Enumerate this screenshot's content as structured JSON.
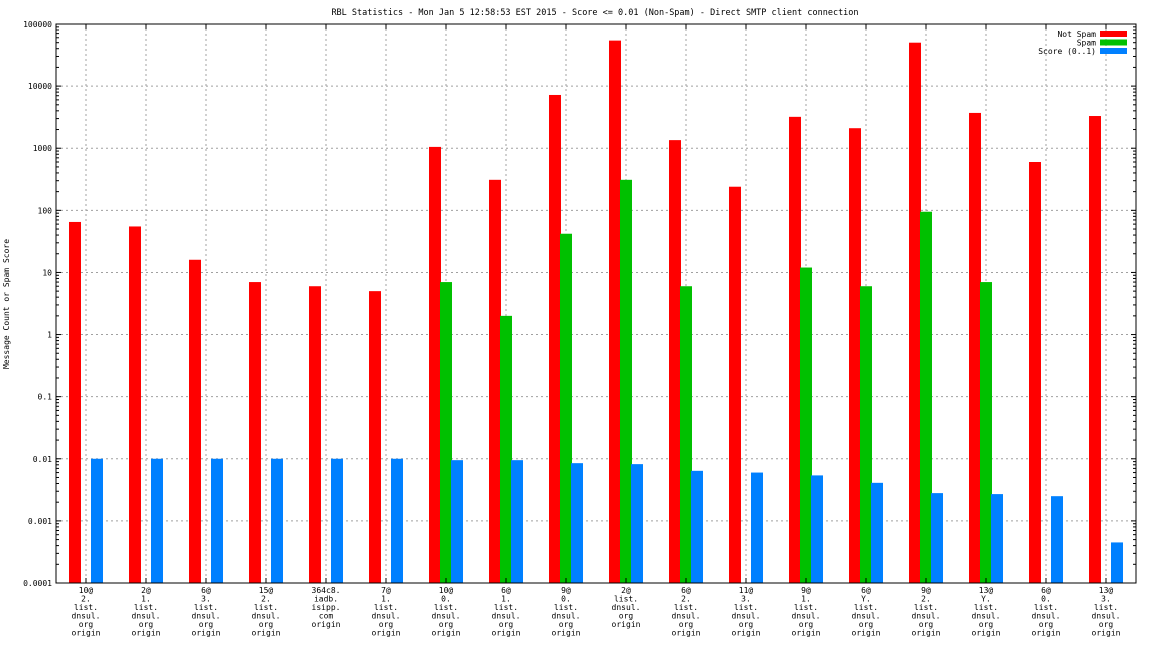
{
  "chart_data": {
    "type": "bar",
    "title": "RBL Statistics - Mon Jan  5 12:58:53 EST 2015 - Score <= 0.01 (Non-Spam) - Direct SMTP client connection",
    "ylabel": "Message Count or Spam Score",
    "xlabel": "",
    "yscale": "log",
    "ylim": [
      0.0001,
      100000
    ],
    "grid": true,
    "legend_position": "top-right",
    "y_ticks": [
      "100000",
      "10000",
      "1000",
      "100",
      "10",
      "1",
      "0.1",
      "0.01",
      "0.001",
      "0.0001"
    ],
    "categories": [
      [
        "10@",
        "2.",
        "list.",
        "dnsul.",
        "org",
        "origin"
      ],
      [
        "2@",
        "1.",
        "list.",
        "dnsul.",
        "org",
        "origin"
      ],
      [
        "6@",
        "3.",
        "list.",
        "dnsul.",
        "org",
        "origin"
      ],
      [
        "15@",
        "2.",
        "list.",
        "dnsul.",
        "org",
        "origin"
      ],
      [
        "364c8.",
        "iadb.",
        "isipp.",
        "com",
        "origin"
      ],
      [
        "7@",
        "1.",
        "list.",
        "dnsul.",
        "org",
        "origin"
      ],
      [
        "10@",
        "0.",
        "list.",
        "dnsul.",
        "org",
        "origin"
      ],
      [
        "6@",
        "1.",
        "list.",
        "dnsul.",
        "org",
        "origin"
      ],
      [
        "9@",
        "0.",
        "list.",
        "dnsul.",
        "org",
        "origin"
      ],
      [
        "2@",
        "list.",
        "dnsul.",
        "org",
        "origin"
      ],
      [
        "6@",
        "2.",
        "list.",
        "dnsul.",
        "org",
        "origin"
      ],
      [
        "11@",
        "3.",
        "list.",
        "dnsul.",
        "org",
        "origin"
      ],
      [
        "9@",
        "1.",
        "list.",
        "dnsul.",
        "org",
        "origin"
      ],
      [
        "6@",
        "Y.",
        "list.",
        "dnsul.",
        "org",
        "origin"
      ],
      [
        "9@",
        "2.",
        "list.",
        "dnsul.",
        "org",
        "origin"
      ],
      [
        "13@",
        "Y.",
        "list.",
        "dnsul.",
        "org",
        "origin"
      ],
      [
        "6@",
        "0.",
        "list.",
        "dnsul.",
        "org",
        "origin"
      ],
      [
        "13@",
        "3.",
        "list.",
        "dnsul.",
        "org",
        "origin"
      ]
    ],
    "series": [
      {
        "name": "Not Spam",
        "color": "#ff0000",
        "values": [
          65,
          55,
          16,
          7,
          6,
          5,
          1050,
          310,
          7200,
          54000,
          1350,
          240,
          3200,
          2100,
          50000,
          3700,
          600,
          3300
        ]
      },
      {
        "name": "Spam",
        "color": "#00c000",
        "values": [
          null,
          null,
          null,
          null,
          null,
          null,
          7,
          2,
          42,
          310,
          6,
          null,
          12,
          6,
          95,
          7,
          null,
          null
        ]
      },
      {
        "name": "Score (0..1)",
        "color": "#0080ff",
        "values": [
          0.01,
          0.01,
          0.01,
          0.01,
          0.01,
          0.01,
          0.0095,
          0.0095,
          0.0085,
          0.0082,
          0.0064,
          0.006,
          0.0054,
          0.0041,
          0.0028,
          0.0027,
          0.0025,
          0.00045
        ]
      }
    ]
  }
}
